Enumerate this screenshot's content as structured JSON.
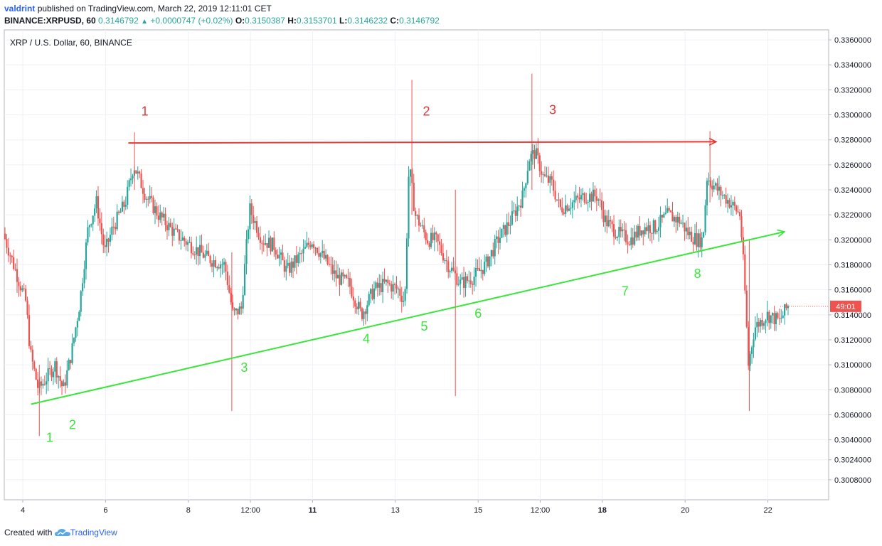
{
  "header": {
    "author": "valdrint",
    "published_text": "published on TradingView.com, March 22, 2019 12:11:01 CET",
    "symbol": "BINANCE:XRPUSD, 60",
    "last": "0.3146792",
    "change": "+0.0000747 (+0.02%)",
    "open_label": "O:",
    "open": "0.3150387",
    "high_label": "H:",
    "high": "0.3153701",
    "low_label": "L:",
    "low": "0.3146232",
    "close_label": "C:",
    "close": "0.3146792"
  },
  "footer": {
    "created_with": "Created with",
    "brand": "TradingView"
  },
  "colors": {
    "up": "#26a69a",
    "down": "#ef5350",
    "resistance": "#e53935",
    "support": "#39e639",
    "grid": "#eef1f6"
  },
  "chart_data": {
    "type": "candlestick",
    "title": "XRP / U.S. Dollar, 60, BINANCE",
    "ylim": [
      0.2992,
      0.3368
    ],
    "y_ticks": [
      "0.3360000",
      "0.3340000",
      "0.3320000",
      "0.3300000",
      "0.3280000",
      "0.3260000",
      "0.3240000",
      "0.3220000",
      "0.3200000",
      "0.3180000",
      "0.3160000",
      "0.3140000",
      "0.3120000",
      "0.3100000",
      "0.3080000",
      "0.3060000",
      "0.3040000",
      "0.3024000",
      "0.3008000"
    ],
    "x_ticks": [
      {
        "label": "4",
        "x": 0.0
      },
      {
        "label": "6",
        "x": 2.0
      },
      {
        "label": "8",
        "x": 4.0
      },
      {
        "label": "12:00",
        "x": 5.5
      },
      {
        "label": "11",
        "x": 7.0
      },
      {
        "label": "13",
        "x": 9.0
      },
      {
        "label": "15",
        "x": 11.0
      },
      {
        "label": "12:00",
        "x": 12.5
      },
      {
        "label": "18",
        "x": 14.0
      },
      {
        "label": "20",
        "x": 16.0
      },
      {
        "label": "22",
        "x": 18.0
      }
    ],
    "bold_x_ticks": [
      "11",
      "18"
    ],
    "x_range": [
      -0.45,
      19.45
    ],
    "price_label": "49:01",
    "price_label_value": 0.3146792,
    "price_path": [
      [
        -0.45,
        0.3205
      ],
      [
        -0.2,
        0.318
      ],
      [
        0.1,
        0.315
      ],
      [
        0.2,
        0.311
      ],
      [
        0.4,
        0.308
      ],
      [
        0.6,
        0.309
      ],
      [
        0.8,
        0.31
      ],
      [
        1.0,
        0.308
      ],
      [
        1.2,
        0.311
      ],
      [
        1.4,
        0.315
      ],
      [
        1.6,
        0.321
      ],
      [
        1.8,
        0.323
      ],
      [
        2.0,
        0.319
      ],
      [
        2.2,
        0.321
      ],
      [
        2.5,
        0.323
      ],
      [
        2.7,
        0.326
      ],
      [
        3.0,
        0.3235
      ],
      [
        3.3,
        0.322
      ],
      [
        3.7,
        0.3205
      ],
      [
        4.1,
        0.3195
      ],
      [
        4.5,
        0.3185
      ],
      [
        4.9,
        0.318
      ],
      [
        5.1,
        0.314
      ],
      [
        5.3,
        0.3145
      ],
      [
        5.5,
        0.3225
      ],
      [
        5.8,
        0.32
      ],
      [
        6.1,
        0.3195
      ],
      [
        6.4,
        0.3175
      ],
      [
        6.8,
        0.319
      ],
      [
        7.0,
        0.32
      ],
      [
        7.3,
        0.3185
      ],
      [
        7.6,
        0.317
      ],
      [
        7.9,
        0.3165
      ],
      [
        8.2,
        0.314
      ],
      [
        8.5,
        0.316
      ],
      [
        8.8,
        0.3165
      ],
      [
        9.1,
        0.316
      ],
      [
        9.25,
        0.315
      ],
      [
        9.35,
        0.326
      ],
      [
        9.5,
        0.322
      ],
      [
        9.8,
        0.32
      ],
      [
        10.0,
        0.32
      ],
      [
        10.3,
        0.318
      ],
      [
        10.6,
        0.3165
      ],
      [
        10.9,
        0.317
      ],
      [
        11.2,
        0.318
      ],
      [
        11.5,
        0.32
      ],
      [
        11.8,
        0.3215
      ],
      [
        12.1,
        0.3235
      ],
      [
        12.25,
        0.3265
      ],
      [
        12.4,
        0.327
      ],
      [
        12.6,
        0.325
      ],
      [
        12.8,
        0.3245
      ],
      [
        13.0,
        0.3225
      ],
      [
        13.3,
        0.323
      ],
      [
        13.6,
        0.3235
      ],
      [
        13.9,
        0.3235
      ],
      [
        14.1,
        0.3215
      ],
      [
        14.4,
        0.3205
      ],
      [
        14.7,
        0.32
      ],
      [
        15.0,
        0.321
      ],
      [
        15.3,
        0.321
      ],
      [
        15.6,
        0.322
      ],
      [
        15.9,
        0.3215
      ],
      [
        16.1,
        0.3205
      ],
      [
        16.3,
        0.32
      ],
      [
        16.45,
        0.32
      ],
      [
        16.55,
        0.325
      ],
      [
        16.8,
        0.324
      ],
      [
        17.1,
        0.323
      ],
      [
        17.35,
        0.322
      ],
      [
        17.45,
        0.317
      ],
      [
        17.55,
        0.31
      ],
      [
        17.7,
        0.313
      ],
      [
        18.0,
        0.314
      ],
      [
        18.3,
        0.3135
      ],
      [
        18.5,
        0.3147
      ]
    ],
    "wicks": [
      {
        "x": 0.4,
        "high": 0.31,
        "low": 0.3043
      },
      {
        "x": 2.7,
        "high": 0.3286,
        "low": 0.324
      },
      {
        "x": 5.05,
        "high": 0.319,
        "low": 0.3063
      },
      {
        "x": 9.4,
        "high": 0.3328,
        "low": 0.322
      },
      {
        "x": 10.45,
        "high": 0.324,
        "low": 0.3075
      },
      {
        "x": 12.3,
        "high": 0.3333,
        "low": 0.324
      },
      {
        "x": 16.6,
        "high": 0.3287,
        "low": 0.323
      },
      {
        "x": 17.55,
        "high": 0.32,
        "low": 0.3063
      }
    ],
    "resistance_line": {
      "from": [
        2.55,
        0.32775
      ],
      "to": [
        16.75,
        0.32785
      ]
    },
    "support_line": {
      "from": [
        0.2,
        0.30685
      ],
      "to": [
        18.4,
        0.32065
      ]
    },
    "resistance_labels": [
      {
        "text": "1",
        "x": 2.95,
        "y": 0.32995
      },
      {
        "text": "2",
        "x": 9.75,
        "y": 0.32995
      },
      {
        "text": "3",
        "x": 12.8,
        "y": 0.33005
      }
    ],
    "support_labels": [
      {
        "text": "1",
        "x": 0.65,
        "y": 0.30385
      },
      {
        "text": "2",
        "x": 1.2,
        "y": 0.30485
      },
      {
        "text": "3",
        "x": 5.35,
        "y": 0.30945
      },
      {
        "text": "4",
        "x": 8.3,
        "y": 0.31175
      },
      {
        "text": "5",
        "x": 9.7,
        "y": 0.31275
      },
      {
        "text": "6",
        "x": 11.0,
        "y": 0.31375
      },
      {
        "text": "7",
        "x": 14.55,
        "y": 0.31555
      },
      {
        "text": "8",
        "x": 16.3,
        "y": 0.31695
      }
    ]
  }
}
